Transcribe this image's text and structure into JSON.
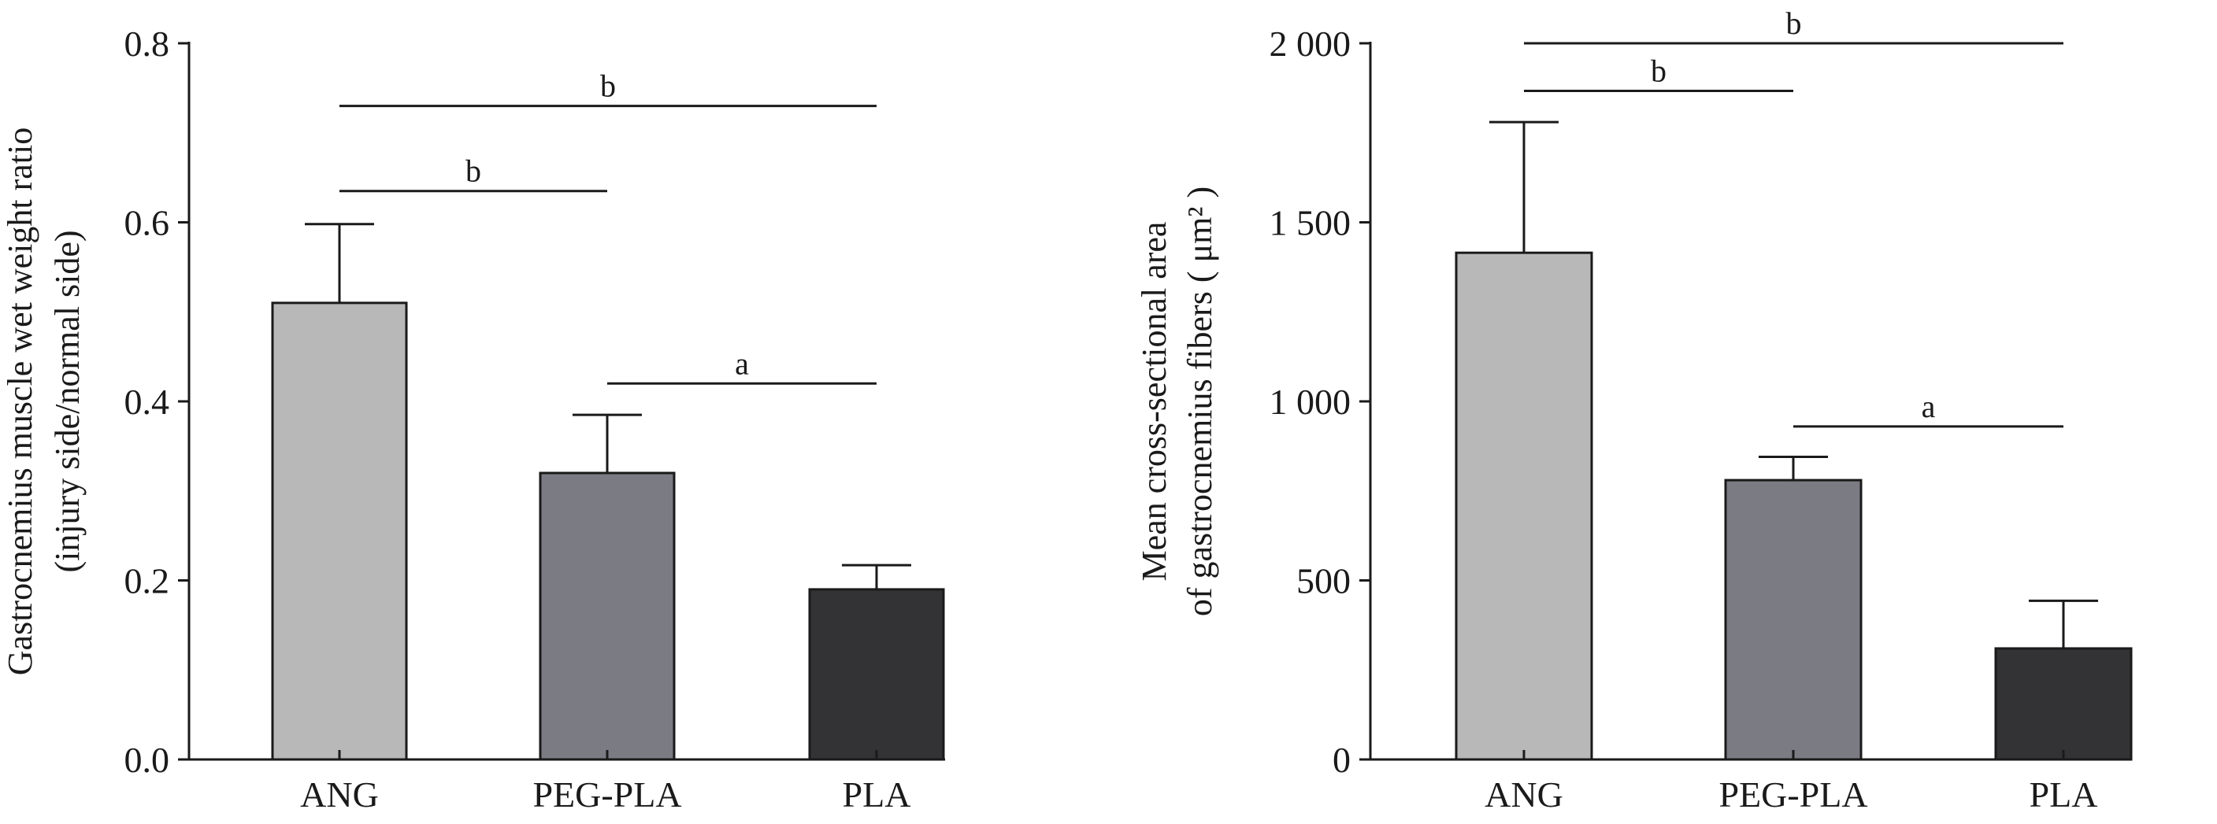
{
  "chart_data": [
    {
      "type": "bar",
      "categories": [
        "ANG",
        "PEG-PLA",
        "PLA"
      ],
      "values": [
        0.51,
        0.32,
        0.19
      ],
      "errors": [
        0.088,
        0.065,
        0.027
      ],
      "ylabel_lines": [
        "Gastrocnemius muscle wet weight ratio",
        "(injury side/normal side)"
      ],
      "ylim": [
        0.0,
        0.8
      ],
      "yticks": [
        {
          "value": 0.0,
          "label": "0.0"
        },
        {
          "value": 0.2,
          "label": "0.2"
        },
        {
          "value": 0.4,
          "label": "0.4"
        },
        {
          "value": 0.6,
          "label": "0.6"
        },
        {
          "value": 0.8,
          "label": "0.8"
        }
      ],
      "significance": [
        {
          "from": "ANG",
          "to": "PLA",
          "y": 0.73,
          "label": "b"
        },
        {
          "from": "ANG",
          "to": "PEG-PLA",
          "y": 0.635,
          "label": "b"
        },
        {
          "from": "PEG-PLA",
          "to": "PLA",
          "y": 0.42,
          "label": "a"
        }
      ],
      "colors": [
        "#b8b8b8",
        "#7b7b83",
        "#333335"
      ]
    },
    {
      "type": "bar",
      "categories": [
        "ANG",
        "PEG-PLA",
        "PLA"
      ],
      "values": [
        1415,
        780,
        310
      ],
      "errors": [
        365,
        65,
        133
      ],
      "ylabel_lines": [
        "Mean cross-sectional area",
        "of gastrocnemius fibers ( μm² )"
      ],
      "ylim": [
        0,
        2000
      ],
      "yticks": [
        {
          "value": 0,
          "label": "0"
        },
        {
          "value": 500,
          "label": "500"
        },
        {
          "value": 1000,
          "label": "1 000"
        },
        {
          "value": 1500,
          "label": "1 500"
        },
        {
          "value": 2000,
          "label": "2 000"
        }
      ],
      "significance": [
        {
          "from": "ANG",
          "to": "PLA",
          "y": 2000,
          "label": "b"
        },
        {
          "from": "ANG",
          "to": "PEG-PLA",
          "y": 1867,
          "label": "b"
        },
        {
          "from": "PEG-PLA",
          "to": "PLA",
          "y": 930,
          "label": "a"
        }
      ],
      "colors": [
        "#b8b8b8",
        "#7b7b83",
        "#333335"
      ]
    }
  ]
}
